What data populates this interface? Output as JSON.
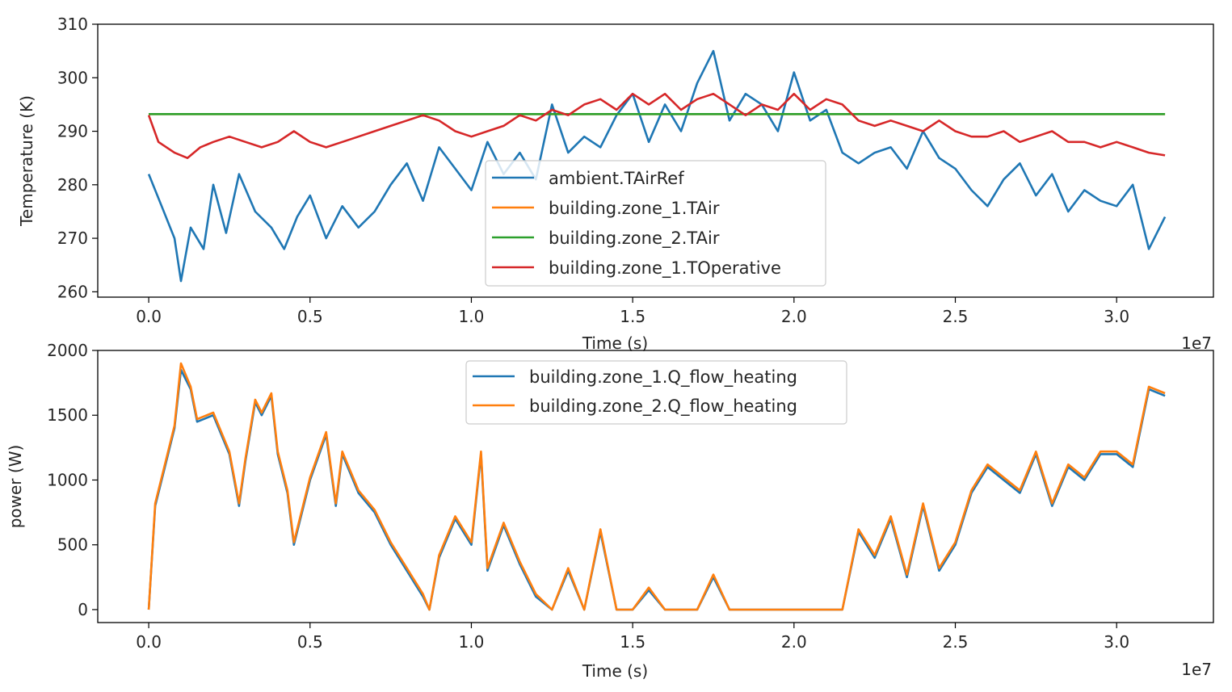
{
  "chart_data": [
    {
      "type": "line",
      "title": "",
      "xlabel": "Time (s)",
      "ylabel": "Temperature (K)",
      "x_offset_label": "1e7",
      "xlim": [
        -0.158,
        3.3
      ],
      "ylim": [
        259,
        310
      ],
      "xticks": [
        0.0,
        0.5,
        1.0,
        1.5,
        2.0,
        2.5,
        3.0
      ],
      "xtick_labels": [
        "0.0",
        "0.5",
        "1.0",
        "1.5",
        "2.0",
        "2.5",
        "3.0"
      ],
      "yticks": [
        260,
        270,
        280,
        290,
        300,
        310
      ],
      "ytick_labels": [
        "260",
        "270",
        "280",
        "290",
        "300",
        "310"
      ],
      "grid": false,
      "legend_position": "lower-center",
      "series": [
        {
          "name": "ambient.TAirRef",
          "color": "#1f77b4",
          "x": [
            0,
            0.04,
            0.08,
            0.1,
            0.13,
            0.17,
            0.2,
            0.24,
            0.28,
            0.33,
            0.38,
            0.42,
            0.46,
            0.5,
            0.55,
            0.6,
            0.65,
            0.7,
            0.75,
            0.8,
            0.85,
            0.9,
            0.95,
            1.0,
            1.05,
            1.1,
            1.15,
            1.2,
            1.25,
            1.3,
            1.35,
            1.4,
            1.45,
            1.5,
            1.55,
            1.6,
            1.65,
            1.7,
            1.75,
            1.8,
            1.85,
            1.9,
            1.95,
            2.0,
            2.05,
            2.1,
            2.15,
            2.2,
            2.25,
            2.3,
            2.35,
            2.4,
            2.45,
            2.5,
            2.55,
            2.6,
            2.65,
            2.7,
            2.75,
            2.8,
            2.85,
            2.9,
            2.95,
            3.0,
            3.05,
            3.1,
            3.15
          ],
          "y": [
            282,
            276,
            270,
            262,
            272,
            268,
            280,
            271,
            282,
            275,
            272,
            268,
            274,
            278,
            270,
            276,
            272,
            275,
            280,
            284,
            277,
            287,
            283,
            279,
            288,
            282,
            286,
            281,
            295,
            286,
            289,
            287,
            293,
            297,
            288,
            295,
            290,
            299,
            305,
            292,
            297,
            295,
            290,
            301,
            292,
            294,
            286,
            284,
            286,
            287,
            283,
            290,
            285,
            283,
            279,
            276,
            281,
            284,
            278,
            282,
            275,
            279,
            277,
            276,
            280,
            268,
            274
          ]
        },
        {
          "name": "building.zone_1.TAir",
          "color": "#ff7f0e",
          "x": [
            0,
            3.15
          ],
          "y": [
            293.2,
            293.2
          ]
        },
        {
          "name": "building.zone_2.TAir",
          "color": "#2ca02c",
          "x": [
            0,
            3.15
          ],
          "y": [
            293.2,
            293.2
          ]
        },
        {
          "name": "building.zone_1.TOperative",
          "color": "#d62728",
          "x": [
            0,
            0.03,
            0.08,
            0.12,
            0.16,
            0.2,
            0.25,
            0.3,
            0.35,
            0.4,
            0.45,
            0.5,
            0.55,
            0.6,
            0.65,
            0.7,
            0.75,
            0.8,
            0.85,
            0.9,
            0.95,
            1.0,
            1.05,
            1.1,
            1.15,
            1.2,
            1.25,
            1.3,
            1.35,
            1.4,
            1.45,
            1.5,
            1.55,
            1.6,
            1.65,
            1.7,
            1.75,
            1.8,
            1.85,
            1.9,
            1.95,
            2.0,
            2.05,
            2.1,
            2.15,
            2.2,
            2.25,
            2.3,
            2.35,
            2.4,
            2.45,
            2.5,
            2.55,
            2.6,
            2.65,
            2.7,
            2.75,
            2.8,
            2.85,
            2.9,
            2.95,
            3.0,
            3.05,
            3.1,
            3.15
          ],
          "y": [
            293,
            288,
            286,
            285,
            287,
            288,
            289,
            288,
            287,
            288,
            290,
            288,
            287,
            288,
            289,
            290,
            291,
            292,
            293,
            292,
            290,
            289,
            290,
            291,
            293,
            292,
            294,
            293,
            295,
            296,
            294,
            297,
            295,
            297,
            294,
            296,
            297,
            295,
            293,
            295,
            294,
            297,
            294,
            296,
            295,
            292,
            291,
            292,
            291,
            290,
            292,
            290,
            289,
            289,
            290,
            288,
            289,
            290,
            288,
            288,
            287,
            288,
            287,
            286,
            285.5
          ]
        }
      ]
    },
    {
      "type": "line",
      "title": "",
      "xlabel": "Time (s)",
      "ylabel": "power (W)",
      "x_offset_label": "1e7",
      "xlim": [
        -0.158,
        3.3
      ],
      "ylim": [
        -100,
        2000
      ],
      "xticks": [
        0.0,
        0.5,
        1.0,
        1.5,
        2.0,
        2.5,
        3.0
      ],
      "xtick_labels": [
        "0.0",
        "0.5",
        "1.0",
        "1.5",
        "2.0",
        "2.5",
        "3.0"
      ],
      "yticks": [
        0,
        500,
        1000,
        1500,
        2000
      ],
      "ytick_labels": [
        "0",
        "500",
        "1000",
        "1500",
        "2000"
      ],
      "grid": false,
      "legend_position": "upper-center",
      "series": [
        {
          "name": "building.zone_1.Q_flow_heating",
          "color": "#1f77b4",
          "x": [
            0,
            0.02,
            0.05,
            0.08,
            0.1,
            0.13,
            0.15,
            0.2,
            0.25,
            0.28,
            0.3,
            0.33,
            0.35,
            0.38,
            0.4,
            0.43,
            0.45,
            0.5,
            0.55,
            0.58,
            0.6,
            0.65,
            0.7,
            0.75,
            0.8,
            0.85,
            0.87,
            0.9,
            0.95,
            1.0,
            1.03,
            1.05,
            1.1,
            1.15,
            1.2,
            1.25,
            1.3,
            1.35,
            1.4,
            1.45,
            1.5,
            1.55,
            1.6,
            1.65,
            1.7,
            1.75,
            1.8,
            1.85,
            1.9,
            1.95,
            2.0,
            2.05,
            2.1,
            2.15,
            2.2,
            2.25,
            2.3,
            2.35,
            2.4,
            2.45,
            2.5,
            2.55,
            2.6,
            2.65,
            2.7,
            2.75,
            2.8,
            2.85,
            2.9,
            2.95,
            3.0,
            3.05,
            3.1,
            3.15
          ],
          "y": [
            0,
            800,
            1100,
            1400,
            1850,
            1700,
            1450,
            1500,
            1200,
            800,
            1150,
            1600,
            1500,
            1650,
            1200,
            900,
            500,
            1000,
            1350,
            800,
            1200,
            900,
            750,
            500,
            300,
            100,
            0,
            400,
            700,
            500,
            1200,
            300,
            650,
            350,
            100,
            0,
            300,
            0,
            600,
            0,
            0,
            150,
            0,
            0,
            0,
            250,
            0,
            0,
            0,
            0,
            0,
            0,
            0,
            0,
            600,
            400,
            700,
            250,
            800,
            300,
            500,
            900,
            1100,
            1000,
            900,
            1200,
            800,
            1100,
            1000,
            1200,
            1200,
            1100,
            1700,
            1650
          ]
        },
        {
          "name": "building.zone_2.Q_flow_heating",
          "color": "#ff7f0e",
          "x": [
            0,
            0.02,
            0.05,
            0.08,
            0.1,
            0.13,
            0.15,
            0.2,
            0.25,
            0.28,
            0.3,
            0.33,
            0.35,
            0.38,
            0.4,
            0.43,
            0.45,
            0.5,
            0.55,
            0.58,
            0.6,
            0.65,
            0.7,
            0.75,
            0.8,
            0.85,
            0.87,
            0.9,
            0.95,
            1.0,
            1.03,
            1.05,
            1.1,
            1.15,
            1.2,
            1.25,
            1.3,
            1.35,
            1.4,
            1.45,
            1.5,
            1.55,
            1.6,
            1.65,
            1.7,
            1.75,
            1.8,
            1.85,
            1.9,
            1.95,
            2.0,
            2.05,
            2.1,
            2.15,
            2.2,
            2.25,
            2.3,
            2.35,
            2.4,
            2.45,
            2.5,
            2.55,
            2.6,
            2.65,
            2.7,
            2.75,
            2.8,
            2.85,
            2.9,
            2.95,
            3.0,
            3.05,
            3.1,
            3.15
          ],
          "y": [
            0,
            820,
            1120,
            1420,
            1900,
            1720,
            1470,
            1520,
            1220,
            820,
            1170,
            1620,
            1520,
            1670,
            1220,
            920,
            520,
            1020,
            1370,
            820,
            1220,
            920,
            770,
            520,
            320,
            120,
            0,
            420,
            720,
            520,
            1220,
            320,
            670,
            370,
            120,
            0,
            320,
            0,
            620,
            0,
            0,
            170,
            0,
            0,
            0,
            270,
            0,
            0,
            0,
            0,
            0,
            0,
            0,
            0,
            620,
            420,
            720,
            270,
            820,
            320,
            520,
            920,
            1120,
            1020,
            920,
            1220,
            820,
            1120,
            1020,
            1220,
            1220,
            1120,
            1720,
            1670
          ]
        }
      ]
    }
  ]
}
